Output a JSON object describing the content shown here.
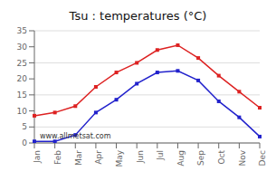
{
  "chart_data": {
    "type": "line",
    "title": "Tsu : temperatures (°C)",
    "categories": [
      "Jan",
      "Feb",
      "Mar",
      "Apr",
      "May",
      "Jun",
      "Jul",
      "Aug",
      "Sep",
      "Oct",
      "Nov",
      "Dec"
    ],
    "series": [
      {
        "color": "#dd2222",
        "values": [
          8.5,
          9.5,
          11.5,
          17.5,
          22,
          25,
          29,
          30.5,
          26.5,
          21,
          16,
          11
        ],
        "marker": "square"
      },
      {
        "color": "#2222cc",
        "values": [
          0.5,
          0.5,
          2.5,
          9.5,
          13.5,
          18.5,
          22,
          22.5,
          19.5,
          13,
          8,
          2
        ],
        "marker": "square"
      }
    ],
    "ylim": [
      0,
      35
    ],
    "yticks": [
      0,
      5,
      10,
      15,
      20,
      25,
      30,
      35
    ],
    "grid": "y",
    "annotations": [
      "www.allmetsat.com"
    ]
  }
}
